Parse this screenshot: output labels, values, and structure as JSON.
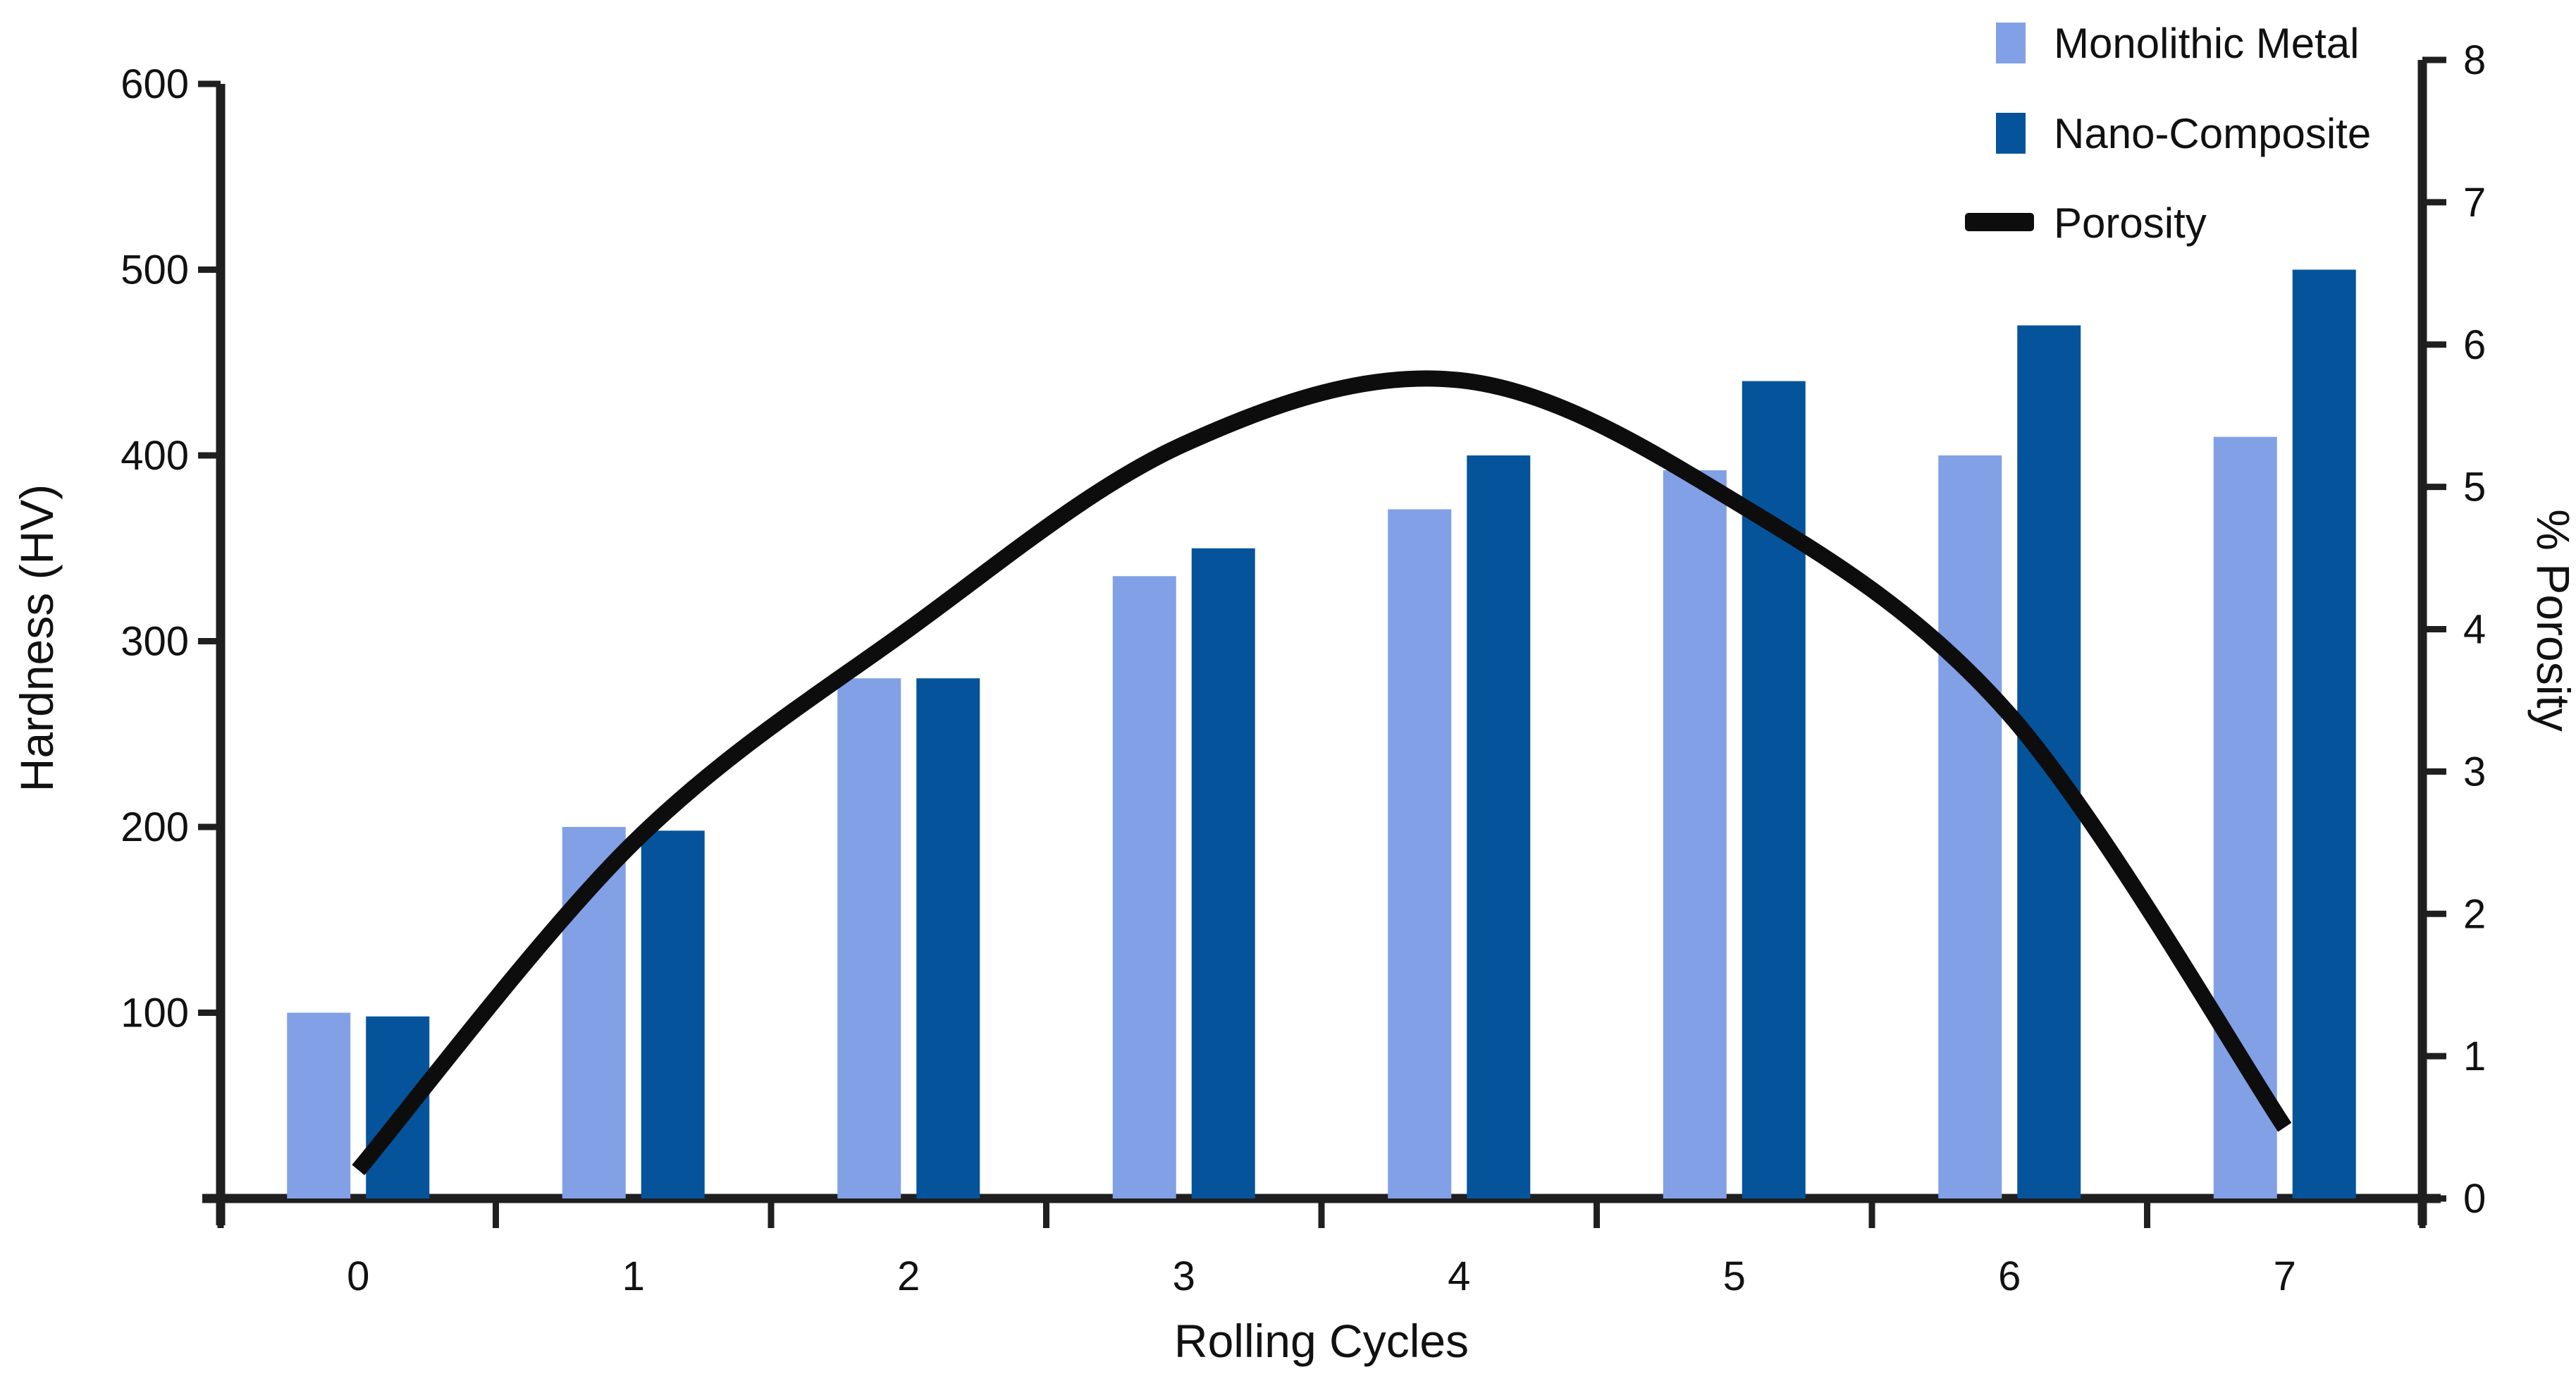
{
  "chart_data": {
    "type": "combo-bar-line",
    "title": "",
    "categories": [
      "0",
      "1",
      "2",
      "3",
      "4",
      "5",
      "6",
      "7"
    ],
    "xlabel": "Rolling Cycles",
    "left_axis": {
      "label": "Hardness (HV)",
      "min": 0,
      "max": 600,
      "ticks": [
        100,
        200,
        300,
        400,
        500,
        600
      ]
    },
    "right_axis": {
      "label": "% Porosity",
      "min": 0,
      "max": 8,
      "ticks": [
        0,
        1,
        2,
        3,
        4,
        5,
        6,
        7,
        8
      ]
    },
    "series": [
      {
        "name": "Monolithic Metal",
        "type": "bar",
        "axis": "left",
        "color": "#82A0E6",
        "values": [
          100,
          200,
          280,
          335,
          371,
          392,
          400,
          410
        ]
      },
      {
        "name": "Nano-Composite",
        "type": "bar",
        "axis": "left",
        "color": "#05549B",
        "values": [
          98,
          198,
          280,
          350,
          400,
          440,
          470,
          500
        ]
      },
      {
        "name": "Porosity",
        "type": "line",
        "axis": "right",
        "color": "#0D0D0D",
        "values": [
          0.2,
          2.5,
          4.0,
          5.3,
          5.75,
          4.9,
          3.4,
          0.5
        ]
      }
    ],
    "legend": {
      "position": "top-right",
      "items": [
        "Monolithic Metal",
        "Nano-Composite",
        "Porosity"
      ]
    },
    "grid": false,
    "background": "#FFFFFF",
    "axis_color": "#1F1F1F",
    "text_color": "#111111"
  }
}
